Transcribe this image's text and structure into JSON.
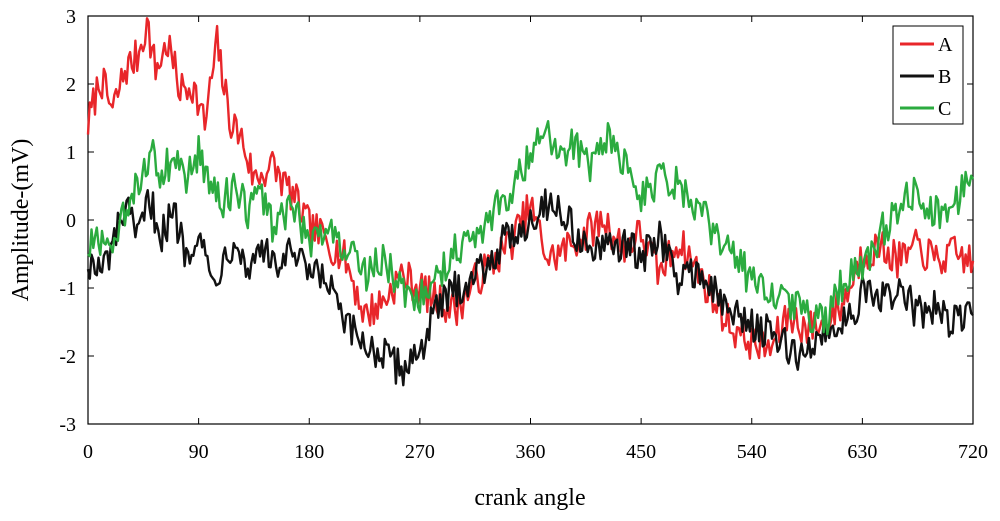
{
  "chart_data": {
    "type": "line",
    "title": "",
    "xlabel": "crank angle",
    "ylabel": "Amplitude-(mV)",
    "xlim": [
      0,
      720
    ],
    "ylim": [
      -3,
      3
    ],
    "xticks": [
      0,
      90,
      180,
      270,
      360,
      450,
      540,
      630,
      720
    ],
    "yticks": [
      -3,
      -2,
      -1,
      0,
      1,
      2,
      3
    ],
    "grid": false,
    "legend": "top-right",
    "colors": {
      "A": "#e8262a",
      "B": "#111111",
      "C": "#2bab3f"
    },
    "series": [
      {
        "name": "A",
        "color": "#e8262a",
        "x": [
          0,
          10,
          20,
          30,
          40,
          48,
          55,
          65,
          75,
          85,
          95,
          105,
          115,
          125,
          135,
          150,
          165,
          180,
          195,
          210,
          225,
          240,
          255,
          270,
          285,
          300,
          315,
          330,
          345,
          360,
          375,
          390,
          405,
          420,
          435,
          450,
          465,
          480,
          495,
          510,
          525,
          540,
          555,
          570,
          585,
          600,
          615,
          630,
          645,
          660,
          675,
          690,
          705,
          720
        ],
        "y": [
          1.4,
          2.1,
          1.6,
          2.2,
          2.4,
          2.9,
          2.2,
          2.6,
          1.9,
          2.0,
          1.4,
          2.6,
          1.5,
          1.2,
          0.6,
          0.8,
          0.4,
          -0.1,
          -0.3,
          -0.6,
          -1.4,
          -1.2,
          -0.8,
          -1.0,
          -1.2,
          -1.3,
          -0.9,
          -0.6,
          -0.3,
          0.2,
          -0.6,
          -0.4,
          -0.2,
          0.0,
          -0.4,
          -0.2,
          -0.8,
          -0.3,
          -0.7,
          -1.2,
          -1.6,
          -1.8,
          -1.9,
          -1.4,
          -1.6,
          -1.5,
          -1.2,
          -0.5,
          -0.4,
          -0.6,
          -0.4,
          -0.6,
          -0.5,
          -0.6
        ]
      },
      {
        "name": "B",
        "color": "#111111",
        "x": [
          0,
          10,
          20,
          30,
          40,
          50,
          60,
          70,
          80,
          90,
          100,
          110,
          120,
          130,
          140,
          150,
          165,
          180,
          195,
          210,
          225,
          240,
          255,
          270,
          285,
          300,
          315,
          330,
          345,
          360,
          375,
          390,
          405,
          420,
          435,
          450,
          465,
          480,
          495,
          510,
          525,
          540,
          555,
          570,
          585,
          600,
          615,
          630,
          645,
          660,
          675,
          690,
          705,
          720
        ],
        "y": [
          -0.6,
          -0.8,
          -0.4,
          0.2,
          -0.3,
          0.3,
          -0.2,
          0.1,
          -0.5,
          -0.1,
          -0.9,
          -0.6,
          -0.2,
          -0.8,
          -0.3,
          -0.7,
          -0.5,
          -0.8,
          -0.9,
          -1.6,
          -1.8,
          -2.0,
          -2.2,
          -1.9,
          -1.3,
          -1.0,
          -0.8,
          -0.5,
          -0.2,
          0.0,
          0.3,
          0.0,
          -0.4,
          -0.5,
          -0.3,
          -0.6,
          -0.2,
          -0.9,
          -0.7,
          -1.1,
          -1.4,
          -1.5,
          -1.7,
          -1.9,
          -2.0,
          -1.6,
          -1.5,
          -1.1,
          -1.2,
          -1.0,
          -1.4,
          -1.3,
          -1.5,
          -1.4
        ]
      },
      {
        "name": "C",
        "color": "#2bab3f",
        "x": [
          0,
          10,
          20,
          30,
          40,
          50,
          60,
          70,
          80,
          90,
          100,
          110,
          120,
          130,
          140,
          150,
          165,
          180,
          195,
          210,
          225,
          240,
          255,
          270,
          285,
          300,
          315,
          330,
          345,
          360,
          370,
          380,
          395,
          410,
          420,
          435,
          450,
          465,
          480,
          495,
          510,
          525,
          540,
          555,
          570,
          585,
          600,
          615,
          630,
          645,
          660,
          675,
          690,
          705,
          720
        ],
        "y": [
          -0.4,
          -0.3,
          -0.6,
          0.1,
          0.5,
          1.0,
          0.7,
          0.9,
          0.6,
          1.0,
          0.4,
          0.3,
          0.5,
          0.1,
          0.4,
          -0.1,
          0.2,
          -0.3,
          -0.1,
          -0.4,
          -0.8,
          -0.6,
          -1.0,
          -1.1,
          -0.8,
          -0.4,
          -0.2,
          0.1,
          0.5,
          0.9,
          1.4,
          1.0,
          1.1,
          0.8,
          1.3,
          0.9,
          0.3,
          0.6,
          0.5,
          0.2,
          -0.2,
          -0.5,
          -0.9,
          -1.1,
          -1.2,
          -1.4,
          -1.5,
          -0.9,
          -0.7,
          -0.2,
          0.2,
          0.4,
          0.1,
          0.3,
          0.6
        ]
      }
    ]
  }
}
